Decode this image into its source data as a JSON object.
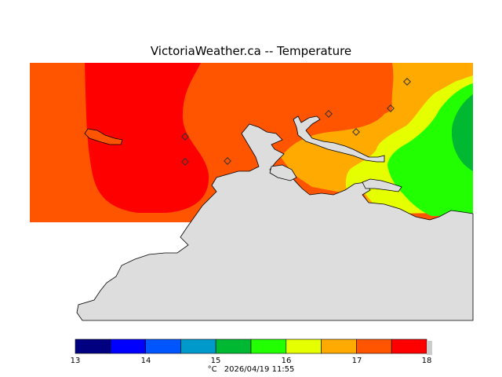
{
  "title": "VictoriaWeather.ca  --  Temperature",
  "legend": {
    "min": 13,
    "max": 18,
    "step": 0.5,
    "tick_labels": [
      "13",
      "14",
      "15",
      "16",
      "17",
      "18"
    ],
    "colors": [
      "#000080",
      "#0000ff",
      "#0055ff",
      "#0099cc",
      "#00b832",
      "#22ff00",
      "#e6ff00",
      "#ffaa00",
      "#ff5500",
      "#ff0000"
    ],
    "unit": "°C",
    "timestamp": "2026/04/19 11:55"
  },
  "map": {
    "land_color": "#dddddd",
    "band_colors": {
      "17.5-18": "#ff0000",
      "17-17.5": "#ff5500",
      "16.5-17": "#ffaa00",
      "16-16.5": "#e6ff00",
      "15.5-16": "#22ff00",
      "15-15.5": "#00b832"
    },
    "station_count": 7
  }
}
